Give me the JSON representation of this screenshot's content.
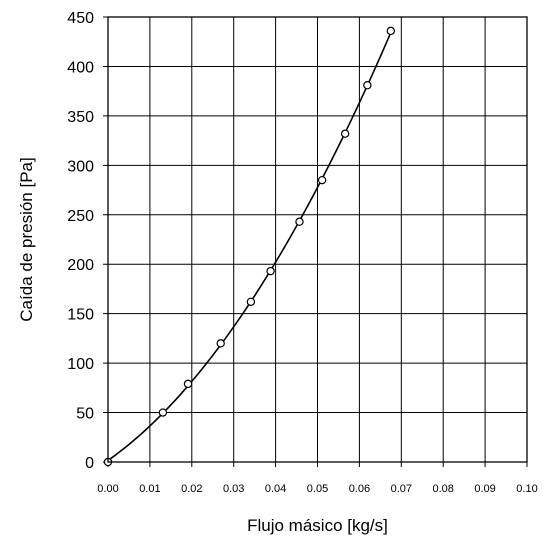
{
  "chart_data": {
    "type": "scatter",
    "title": "",
    "xlabel": "Flujo másico [kg/s]",
    "ylabel": "Caída de presión [Pa]",
    "xlim": [
      0,
      0.1
    ],
    "ylim": [
      0,
      450
    ],
    "x_ticks": [
      "0.00",
      "0.01",
      "0.02",
      "0.03",
      "0.04",
      "0.05",
      "0.06",
      "0.07",
      "0.08",
      "0.09",
      "0.10"
    ],
    "y_ticks": [
      "0",
      "50",
      "100",
      "150",
      "200",
      "250",
      "300",
      "350",
      "400",
      "450"
    ],
    "grid": true,
    "legend": "none",
    "series": [
      {
        "points": [
          {
            "x": 0.0,
            "y": 0
          },
          {
            "x": 0.0131,
            "y": 50
          },
          {
            "x": 0.0191,
            "y": 79
          },
          {
            "x": 0.0269,
            "y": 120
          },
          {
            "x": 0.0341,
            "y": 162
          },
          {
            "x": 0.0388,
            "y": 193
          },
          {
            "x": 0.0457,
            "y": 243
          },
          {
            "x": 0.0511,
            "y": 285
          },
          {
            "x": 0.0566,
            "y": 332
          },
          {
            "x": 0.0619,
            "y": 381
          },
          {
            "x": 0.0675,
            "y": 436
          }
        ],
        "marker": "open-circle",
        "trendline": true,
        "color": "#000000"
      }
    ]
  }
}
